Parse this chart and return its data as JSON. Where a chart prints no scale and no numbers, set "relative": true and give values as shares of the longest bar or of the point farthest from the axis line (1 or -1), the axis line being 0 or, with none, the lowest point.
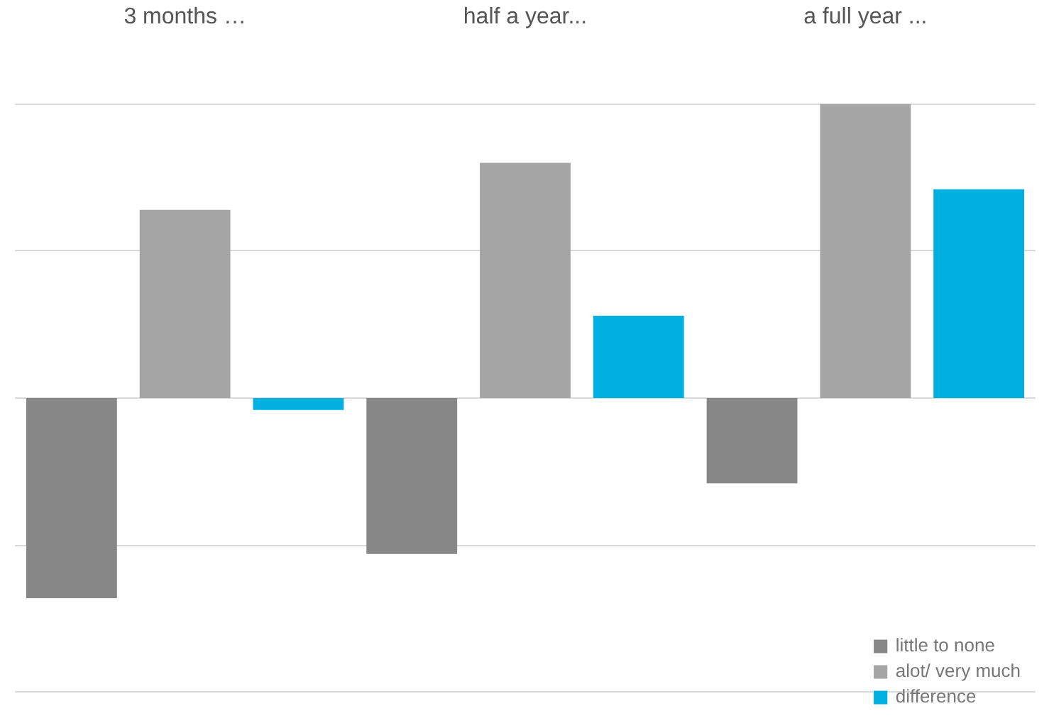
{
  "chart_data": {
    "type": "bar",
    "relative": true,
    "categories": [
      "3 months …",
      "half a year...",
      "a full year ..."
    ],
    "series": [
      {
        "name": "little to none",
        "color": "#878787",
        "values": [
          -0.68,
          -0.53,
          -0.29
        ]
      },
      {
        "name": "alot/ very much",
        "color": "#a5a5a5",
        "values": [
          0.64,
          0.8,
          1
        ]
      },
      {
        "name": "difference",
        "color": "#00b0e0",
        "values": [
          -0.04,
          0.28,
          0.71
        ]
      }
    ],
    "grid": "y",
    "legend": "bottom right"
  }
}
